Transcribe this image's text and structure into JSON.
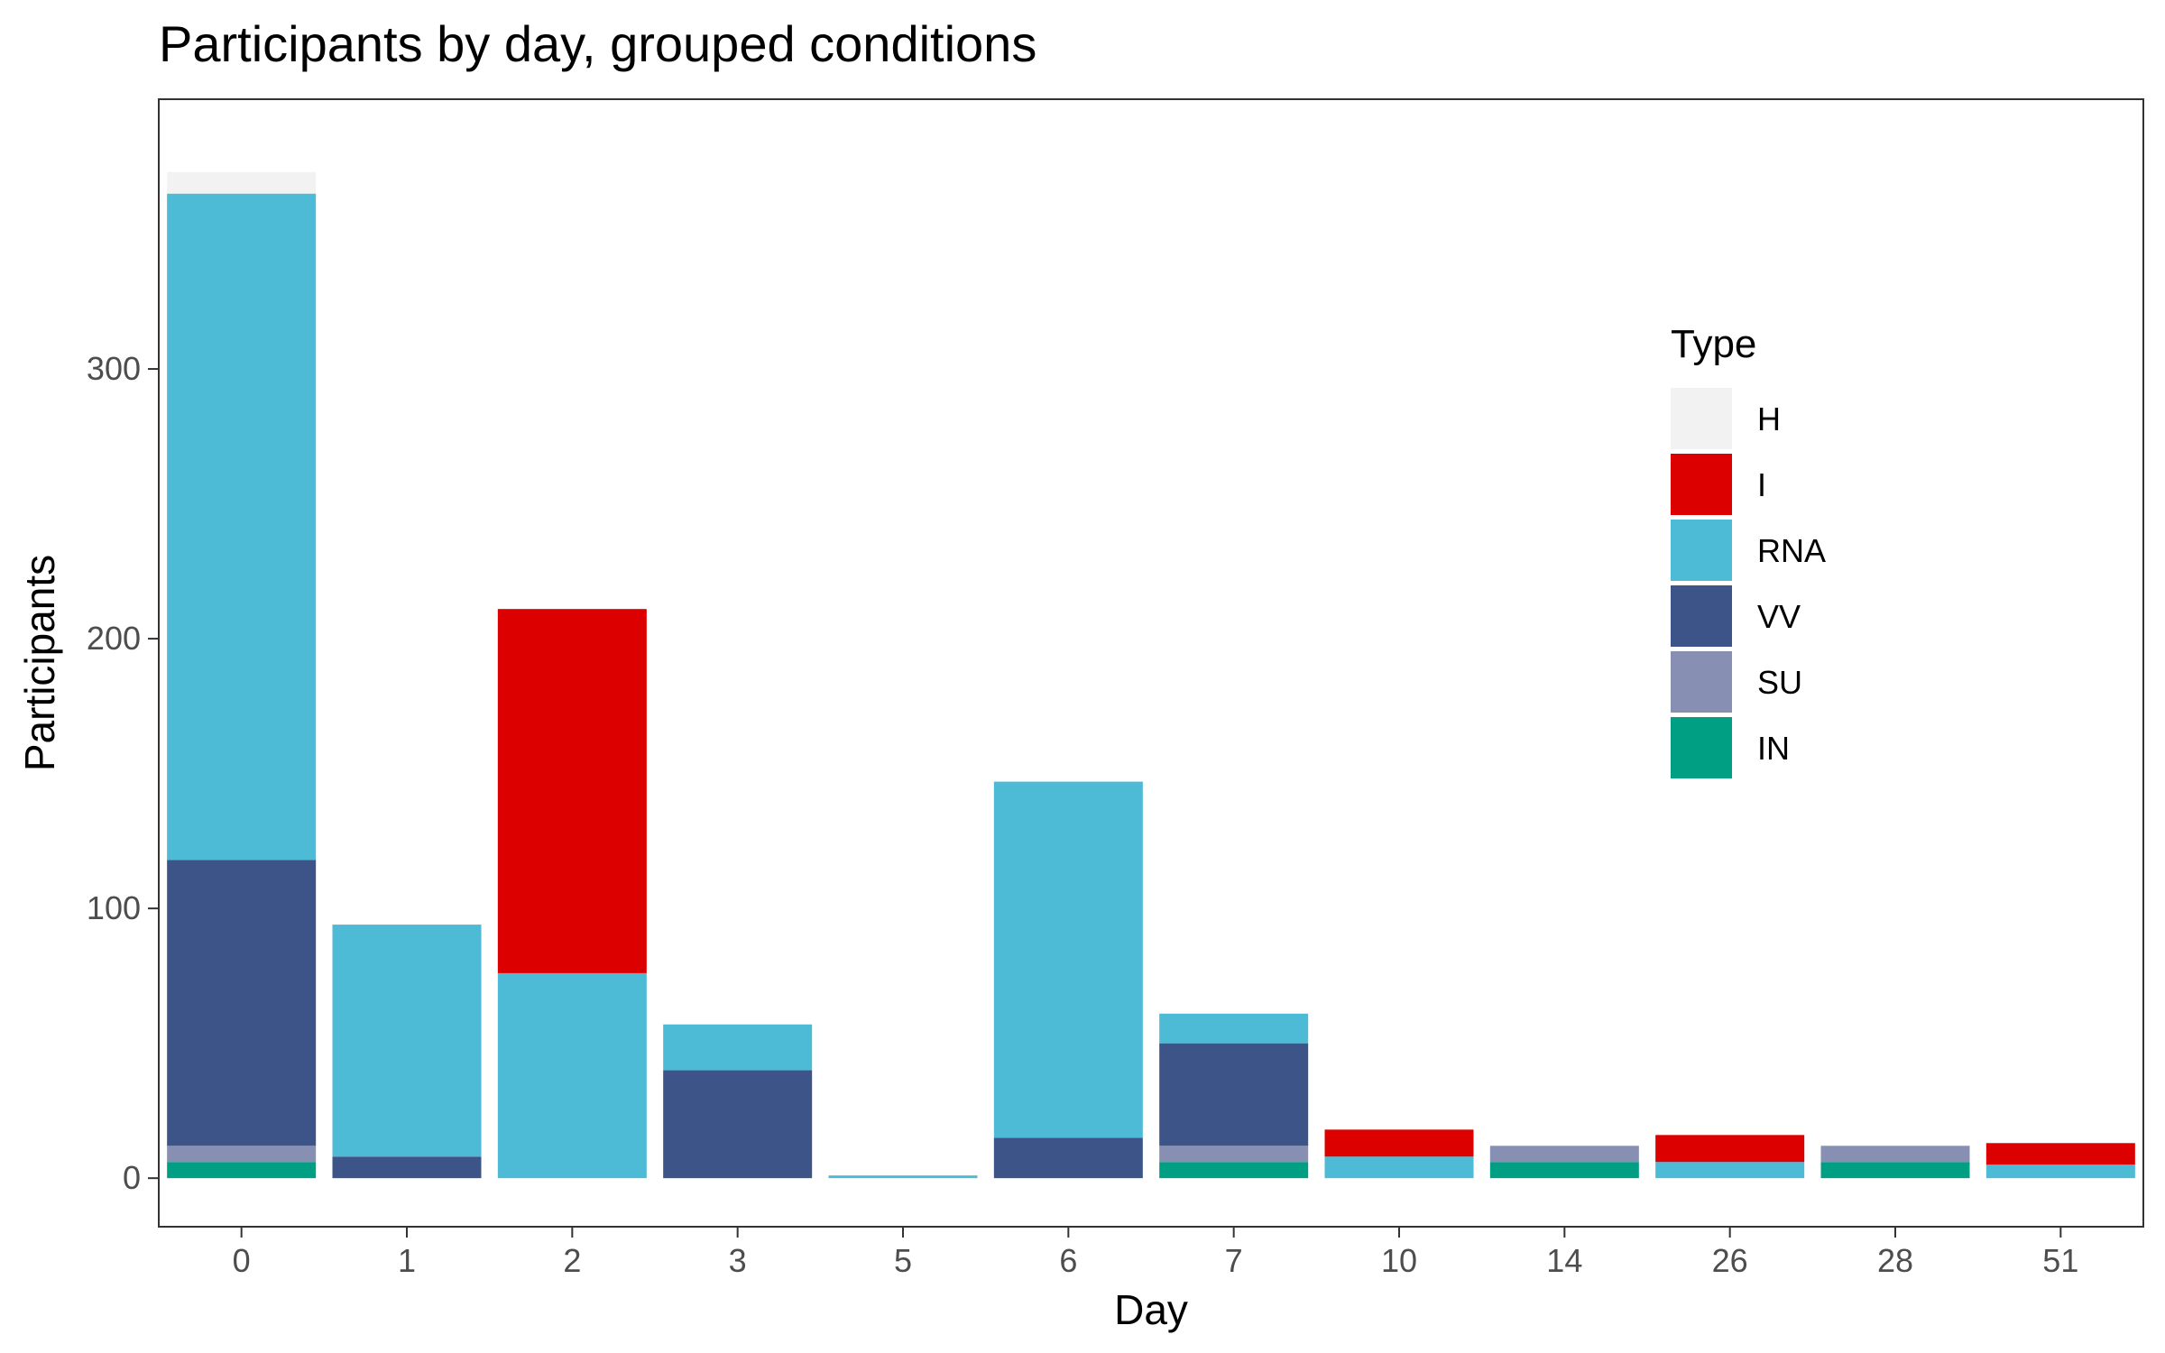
{
  "chart_data": {
    "type": "bar",
    "stacked": true,
    "title": "Participants by day, grouped conditions",
    "xlabel": "Day",
    "ylabel": "Participants",
    "ylim": [
      -18,
      400
    ],
    "yticks": [
      0,
      100,
      200,
      300
    ],
    "grid": false,
    "legend": {
      "title": "Type",
      "placement": "right-inside"
    },
    "categories": [
      "0",
      "1",
      "2",
      "3",
      "5",
      "6",
      "7",
      "10",
      "14",
      "26",
      "28",
      "51"
    ],
    "series": [
      {
        "name": "IN",
        "color": "#009e82",
        "values": [
          6,
          0,
          0,
          0,
          0,
          0,
          6,
          0,
          6,
          0,
          6,
          0
        ]
      },
      {
        "name": "SU",
        "color": "#8790b3",
        "values": [
          6,
          0,
          0,
          0,
          0,
          0,
          6,
          0,
          6,
          0,
          6,
          0
        ]
      },
      {
        "name": "VV",
        "color": "#3d5488",
        "values": [
          106,
          8,
          0,
          40,
          0,
          15,
          38,
          0,
          0,
          0,
          0,
          0
        ]
      },
      {
        "name": "RNA",
        "color": "#4dbad6",
        "values": [
          247,
          86,
          76,
          17,
          1,
          132,
          11,
          8,
          0,
          6,
          0,
          5
        ]
      },
      {
        "name": "I",
        "color": "#dc0000",
        "values": [
          0,
          0,
          135,
          0,
          0,
          0,
          0,
          10,
          0,
          10,
          0,
          8
        ]
      },
      {
        "name": "H",
        "color": "#f2f2f2",
        "values": [
          8,
          0,
          0,
          0,
          0,
          0,
          0,
          0,
          0,
          0,
          0,
          0
        ]
      }
    ],
    "legend_order": [
      "H",
      "I",
      "RNA",
      "VV",
      "SU",
      "IN"
    ]
  }
}
